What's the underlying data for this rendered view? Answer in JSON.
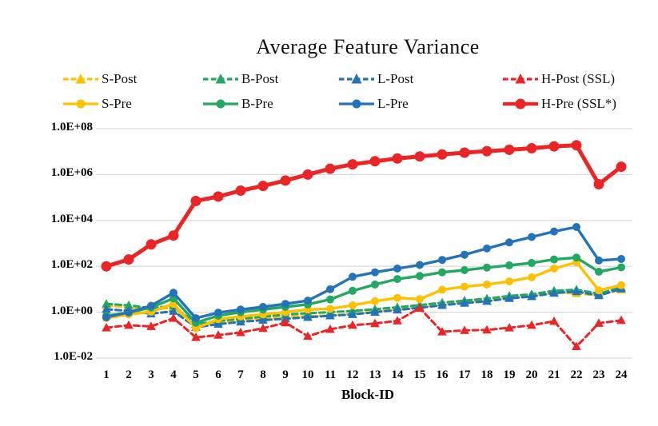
{
  "title": "Average Feature Variance",
  "colors": {
    "yellow": "#FFC000",
    "green": "#22A860",
    "blue": "#2273B9",
    "red": "#EB2426",
    "gridline": "#D9D9D9",
    "text": "#111111"
  },
  "chart_data": {
    "type": "line",
    "title": "Average Feature Variance",
    "xlabel": "Block-ID",
    "ylabel": "",
    "y_scale": "log10",
    "ylim": [
      0.01,
      100000000
    ],
    "grid": true,
    "legend_position": "top",
    "legend_rows": 2,
    "x": [
      1,
      2,
      3,
      4,
      5,
      6,
      7,
      8,
      9,
      10,
      11,
      12,
      13,
      14,
      15,
      16,
      17,
      18,
      19,
      20,
      21,
      22,
      23,
      24
    ],
    "y_ticks": [
      {
        "label": "1.0E+08",
        "value": 100000000.0
      },
      {
        "label": "1.0E+06",
        "value": 1000000.0
      },
      {
        "label": "1.0E+04",
        "value": 10000.0
      },
      {
        "label": "1.0E+02",
        "value": 100.0
      },
      {
        "label": "1.0E+00",
        "value": 1
      },
      {
        "label": "1.0E-02",
        "value": 0.01
      }
    ],
    "series": [
      {
        "name": "S-Post",
        "color": "#FFC000",
        "style": "dashed",
        "marker": "triangle",
        "values": [
          1.9,
          1.7,
          1.25,
          1.6,
          0.26,
          0.35,
          0.45,
          0.55,
          0.62,
          0.67,
          0.72,
          0.85,
          1.05,
          1.35,
          1.7,
          2.2,
          2.7,
          3.3,
          4.3,
          5.2,
          7.3,
          6.5,
          5.5,
          9.5
        ]
      },
      {
        "name": "B-Post",
        "color": "#22A860",
        "style": "dashed",
        "marker": "triangle",
        "values": [
          2.3,
          2.0,
          1.5,
          1.9,
          0.3,
          0.42,
          0.52,
          0.65,
          0.78,
          0.9,
          1.0,
          1.15,
          1.35,
          1.65,
          2.05,
          2.6,
          3.2,
          3.9,
          5.1,
          6.1,
          8.6,
          9.5,
          6.5,
          12
        ]
      },
      {
        "name": "L-Post",
        "color": "#2273B9",
        "style": "dashed",
        "marker": "triangle",
        "values": [
          1.35,
          1.15,
          0.85,
          1.1,
          0.22,
          0.3,
          0.38,
          0.45,
          0.52,
          0.6,
          0.7,
          0.8,
          1.0,
          1.25,
          1.55,
          2.0,
          2.5,
          3.0,
          4.0,
          4.8,
          6.8,
          8.0,
          5.3,
          10.5
        ]
      },
      {
        "name": "H-Post (SSL)",
        "color": "#EB2426",
        "style": "dashed",
        "marker": "triangle",
        "values": [
          0.21,
          0.27,
          0.24,
          0.55,
          0.08,
          0.1,
          0.13,
          0.2,
          0.35,
          0.09,
          0.18,
          0.27,
          0.32,
          0.42,
          1.5,
          0.14,
          0.16,
          0.17,
          0.21,
          0.27,
          0.4,
          0.032,
          0.33,
          0.44
        ]
      },
      {
        "name": "S-Pre",
        "color": "#FFC000",
        "style": "solid",
        "marker": "circle",
        "values": [
          0.55,
          0.8,
          1.05,
          2.3,
          0.2,
          0.5,
          0.65,
          0.8,
          1.0,
          1.3,
          1.4,
          2.0,
          3.0,
          4.2,
          3.7,
          9.5,
          13,
          16,
          22,
          33,
          80,
          150,
          9,
          15
        ]
      },
      {
        "name": "B-Pre",
        "color": "#22A860",
        "style": "solid",
        "marker": "circle",
        "values": [
          0.7,
          0.95,
          1.6,
          4.0,
          0.35,
          0.7,
          1.0,
          1.3,
          1.7,
          2.2,
          3.6,
          8.5,
          16,
          28,
          38,
          55,
          68,
          88,
          110,
          140,
          200,
          240,
          58,
          90
        ]
      },
      {
        "name": "L-Pre",
        "color": "#2273B9",
        "style": "solid",
        "marker": "circle",
        "values": [
          0.6,
          1.0,
          1.9,
          7.0,
          0.55,
          0.95,
          1.3,
          1.7,
          2.3,
          3.2,
          10,
          35,
          55,
          80,
          115,
          190,
          320,
          600,
          1100,
          1900,
          3300,
          5200,
          180,
          210
        ]
      },
      {
        "name": "H-Pre (SSL*)",
        "color": "#EB2426",
        "style": "solid",
        "marker": "circle",
        "emphasis": "thick",
        "values": [
          100,
          200,
          900,
          2200,
          70000,
          110000,
          200000,
          320000,
          550000,
          1000000,
          1800000,
          2800000,
          3800000,
          5000000,
          6200000,
          7500000,
          9000000,
          10500000,
          12000000,
          14000000,
          17000000,
          19000000,
          380000,
          2200000
        ]
      }
    ]
  }
}
